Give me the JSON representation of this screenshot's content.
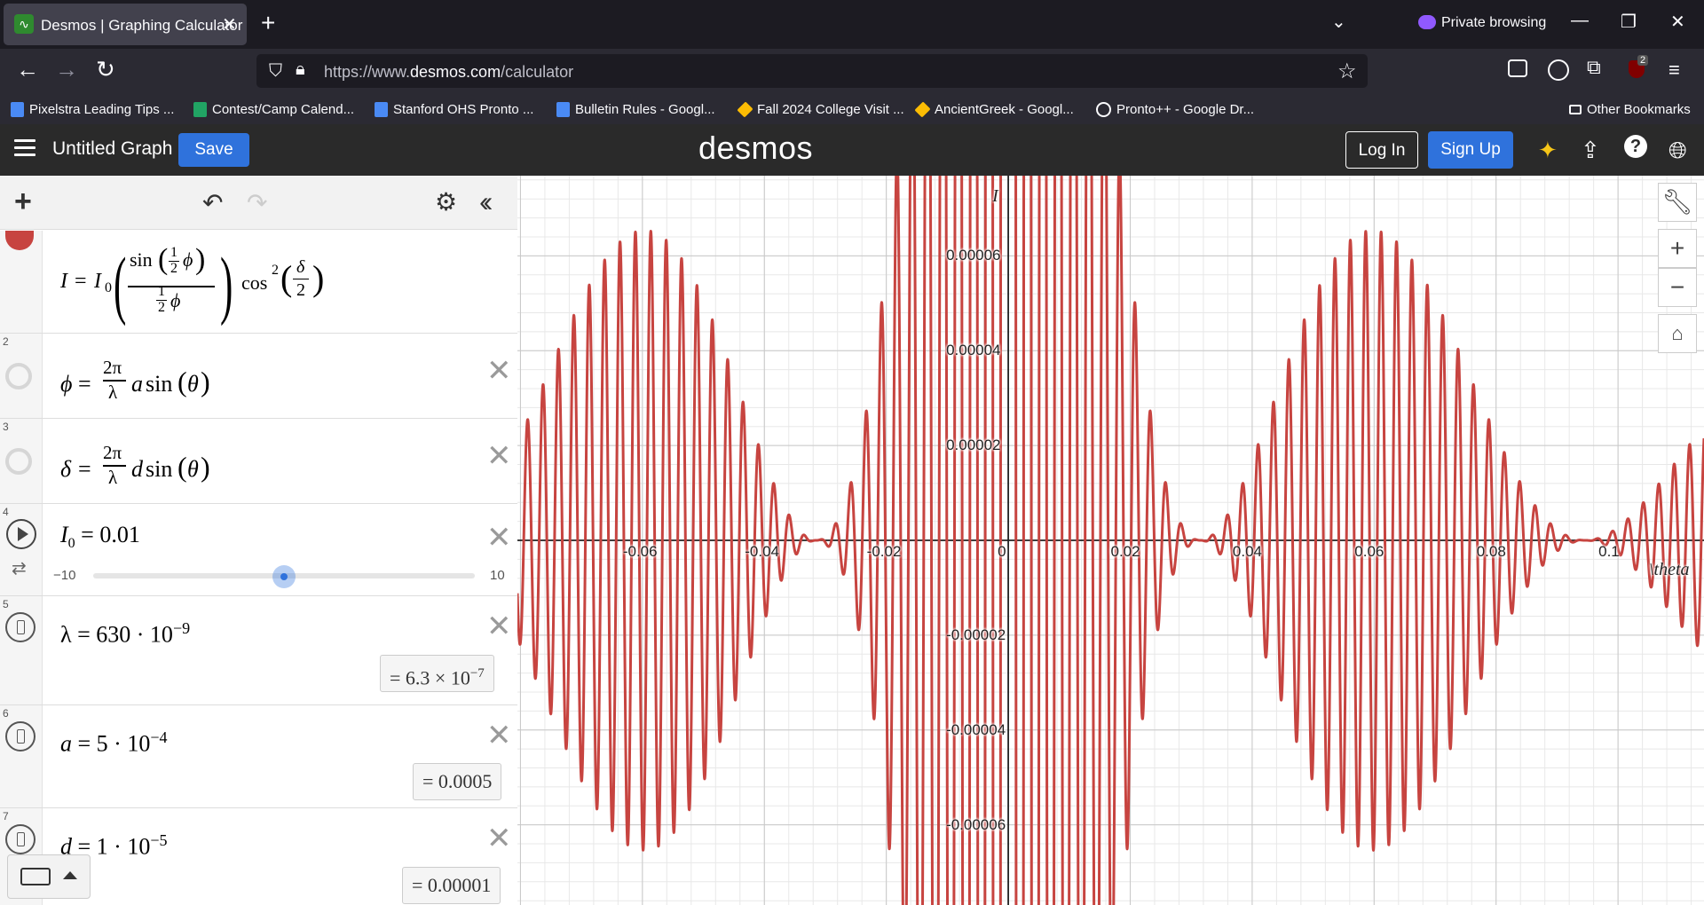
{
  "browser": {
    "tab_title": "Desmos | Graphing Calculator",
    "private_label": "Private browsing",
    "url_prefix": "https://www.",
    "url_domain": "desmos.com",
    "url_path": "/calculator",
    "ublock_count": "2",
    "bookmarks": [
      {
        "label": "Pixelstra Leading Tips ...",
        "icon": "doc-icon",
        "color": "#4a8af4"
      },
      {
        "label": "Contest/Camp Calend...",
        "icon": "sheet-icon",
        "color": "#21a464"
      },
      {
        "label": "Stanford OHS Pronto ...",
        "icon": "doc-icon",
        "color": "#4a8af4"
      },
      {
        "label": "Bulletin Rules - Googl...",
        "icon": "doc-icon",
        "color": "#4a8af4"
      },
      {
        "label": "Fall 2024 College Visit ...",
        "icon": "drive-icon",
        "color": "#fbbc04"
      },
      {
        "label": "AncientGreek - Googl...",
        "icon": "drive-icon",
        "color": "#fbbc04"
      },
      {
        "label": "Pronto++ - Google Dr...",
        "icon": "globe-icon",
        "color": "#fbfbfe"
      }
    ],
    "other_bookmarks": "Other Bookmarks"
  },
  "desmos": {
    "graph_title": "Untitled Graph",
    "save": "Save",
    "logo": "desmos",
    "login": "Log In",
    "signup": "Sign Up"
  },
  "expressions": [
    {
      "n": "",
      "latex": "I = I_0 ( sin(½φ) / ½φ ) cos²(δ/2)"
    },
    {
      "n": "2",
      "latex": "φ = 2π/λ a sin(θ)"
    },
    {
      "n": "3",
      "latex": "δ = 2π/λ d sin(θ)"
    },
    {
      "n": "4",
      "latex": "I_0 = 0.01",
      "slider_min": "−10",
      "slider_max": "10",
      "slider_value": 0.01
    },
    {
      "n": "5",
      "latex": "λ = 630 · 10^−9",
      "result": "6.3 × 10^−7"
    },
    {
      "n": "6",
      "latex": "a = 5 · 10^−4",
      "result": "0.0005"
    },
    {
      "n": "7",
      "latex": "d = 1 · 10^−5",
      "result": "0.00001"
    }
  ],
  "graph": {
    "y_axis_label": "I",
    "x_axis_label": "\\theta",
    "x_ticks": [
      "-0.06",
      "-0.04",
      "-0.02",
      "0",
      "0.02",
      "0.04",
      "0.06",
      "0.08",
      "0.1"
    ],
    "y_ticks": [
      "0.00006",
      "0.00004",
      "0.00002",
      "-0.00002",
      "-0.00004",
      "-0.00006"
    ],
    "curve_color": "#c74440"
  }
}
